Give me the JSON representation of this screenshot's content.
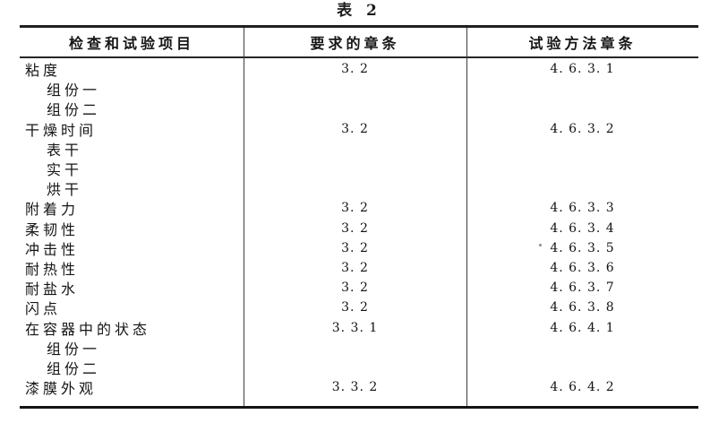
{
  "caption": "表 2",
  "colors": {
    "background": "#ffffff",
    "ink": "#1c1c1c",
    "rule_thick": "#1f1f1f",
    "rule_thin": "#3c3c44"
  },
  "table": {
    "headers": {
      "item": "检查和试验项目",
      "required": "要求的章条",
      "method": "试验方法章条"
    },
    "rows": [
      {
        "item": "粘度",
        "required": "3. 2",
        "method": "4. 6. 3. 1"
      },
      {
        "item": "组份一",
        "required": "",
        "method": ""
      },
      {
        "item": "组份二",
        "required": "",
        "method": ""
      },
      {
        "item": "干燥时间",
        "required": "3. 2",
        "method": "4. 6. 3. 2"
      },
      {
        "item": "表干",
        "required": "",
        "method": ""
      },
      {
        "item": "实干",
        "required": "",
        "method": ""
      },
      {
        "item": "烘干",
        "required": "",
        "method": ""
      },
      {
        "item": "附着力",
        "required": "3. 2",
        "method": "4. 6. 3. 3"
      },
      {
        "item": "柔韧性",
        "required": "3. 2",
        "method": "4. 6. 3. 4"
      },
      {
        "item": "冲击性",
        "required": "3. 2",
        "method": "4. 6. 3. 5"
      },
      {
        "item": "耐热性",
        "required": "3. 2",
        "method": "4. 6. 3. 6"
      },
      {
        "item": "耐盐水",
        "required": "3. 2",
        "method": "4. 6. 3. 7"
      },
      {
        "item": "闪点",
        "required": "3. 2",
        "method": "4. 6. 3. 8"
      },
      {
        "item": "在容器中的状态",
        "required": "3. 3. 1",
        "method": "4. 6. 4. 1"
      },
      {
        "item": "组份一",
        "required": "",
        "method": ""
      },
      {
        "item": "组份二",
        "required": "",
        "method": ""
      },
      {
        "item": "漆膜外观",
        "required": "3. 3. 2",
        "method": "4. 6. 4. 2"
      }
    ]
  }
}
